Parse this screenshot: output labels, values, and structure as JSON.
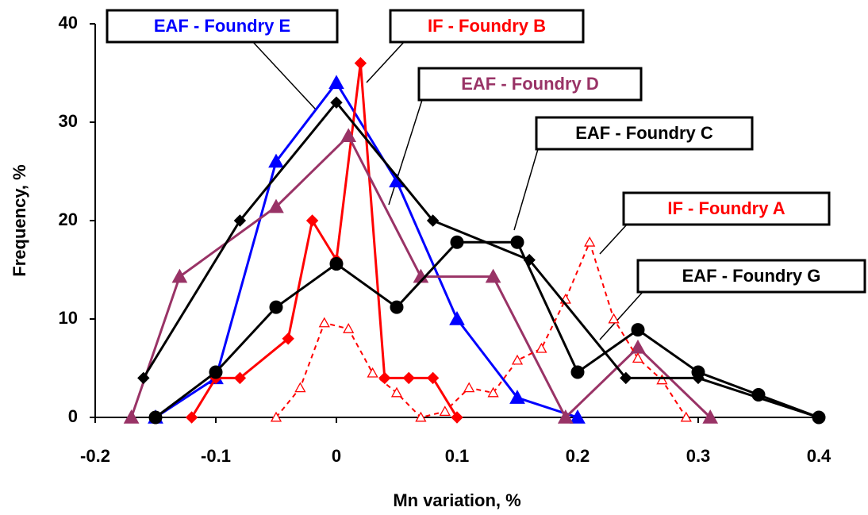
{
  "chart_data": {
    "type": "line",
    "x_label": "Mn variation, %",
    "y_label": "Frequency, %",
    "xlim": [
      -0.2,
      0.4
    ],
    "xticks": [
      -0.2,
      -0.1,
      0,
      0.1,
      0.2,
      0.3,
      0.4
    ],
    "ylim": [
      0,
      40
    ],
    "yticks": [
      0,
      10,
      20,
      30,
      40
    ],
    "grid": false,
    "series": [
      {
        "name": "EAF - Foundry E",
        "color": "#0000ff",
        "marker": "triangle",
        "filled": true,
        "dashed": false,
        "x": [
          -0.15,
          -0.1,
          -0.05,
          0,
          0.05,
          0.1,
          0.15,
          0.2
        ],
        "values": [
          0,
          4,
          26,
          34,
          24,
          10,
          2,
          0
        ]
      },
      {
        "name": "IF - Foundry B",
        "color": "#ff0000",
        "marker": "diamond",
        "filled": true,
        "dashed": false,
        "x": [
          -0.12,
          -0.1,
          -0.08,
          -0.04,
          -0.02,
          0,
          0.02,
          0.04,
          0.06,
          0.08,
          0.1
        ],
        "values": [
          0,
          4,
          4,
          8,
          20,
          16,
          36,
          4,
          4,
          4,
          0
        ]
      },
      {
        "name": "EAF - Foundry D",
        "color": "#993366",
        "marker": "triangle",
        "filled": true,
        "dashed": false,
        "x": [
          -0.17,
          -0.13,
          -0.05,
          0.01,
          0.07,
          0.13,
          0.19,
          0.25,
          0.31
        ],
        "values": [
          0,
          14.3,
          21.4,
          28.6,
          14.3,
          14.3,
          0,
          7.1,
          0
        ]
      },
      {
        "name": "EAF - Foundry C",
        "color": "#000000",
        "marker": "circle",
        "filled": true,
        "dashed": false,
        "x": [
          -0.15,
          -0.1,
          -0.05,
          0,
          0.05,
          0.1,
          0.15,
          0.2,
          0.25,
          0.3,
          0.35,
          0.4
        ],
        "values": [
          0,
          4.6,
          11.2,
          15.6,
          11.2,
          17.8,
          17.8,
          4.6,
          8.9,
          4.6,
          2.3,
          0
        ]
      },
      {
        "name": "IF - Foundry A",
        "color": "#ff0000",
        "marker": "triangle",
        "filled": false,
        "dashed": true,
        "x": [
          -0.05,
          -0.03,
          -0.01,
          0.01,
          0.03,
          0.05,
          0.07,
          0.09,
          0.11,
          0.13,
          0.15,
          0.17,
          0.19,
          0.21,
          0.23,
          0.25,
          0.27,
          0.29
        ],
        "values": [
          0,
          3,
          9.6,
          9,
          4.5,
          2.5,
          0,
          0.6,
          3,
          2.5,
          5.8,
          7,
          12,
          17.8,
          10,
          6,
          3.8,
          0
        ]
      },
      {
        "name": "EAF - Foundry G",
        "color": "#000000",
        "marker": "diamond",
        "filled": true,
        "dashed": false,
        "x": [
          -0.16,
          -0.08,
          0,
          0.08,
          0.16,
          0.24,
          0.3,
          0.4
        ],
        "values": [
          4,
          20,
          32,
          20,
          16,
          4,
          4,
          0
        ]
      }
    ]
  }
}
